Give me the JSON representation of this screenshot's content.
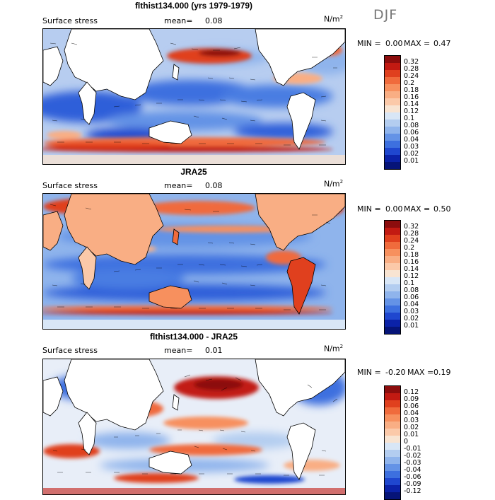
{
  "season": "DJF",
  "unit": "N/m",
  "unit_exp": "2",
  "panels": [
    {
      "title": "flthist134.000 (yrs 1979-1979)",
      "field_label": "Surface stress",
      "mean_label": "mean=",
      "mean_value": "0.08",
      "min_label": "MIN =",
      "min_value": "0.00",
      "max_label": "MAX =",
      "max_value": "0.47",
      "colorbar": {
        "labels": [
          "0.32",
          "0.28",
          "0.24",
          "0.2",
          "0.18",
          "0.16",
          "0.14",
          "0.12",
          "0.1",
          "0.08",
          "0.06",
          "0.04",
          "0.03",
          "0.02",
          "0.01"
        ],
        "colors": [
          "#8c0d0d",
          "#c21a12",
          "#e0401e",
          "#f06b3c",
          "#f7905e",
          "#f9ae84",
          "#fbc9a9",
          "#f8e4d2",
          "#d8e6f6",
          "#b3cdf0",
          "#8fb4ec",
          "#6493e6",
          "#3d70df",
          "#1f47cf",
          "#0b22a8",
          "#061478"
        ]
      }
    },
    {
      "title": "JRA25",
      "field_label": "Surface stress",
      "mean_label": "mean=",
      "mean_value": "0.08",
      "min_label": "MIN =",
      "min_value": "0.00",
      "max_label": "MAX =",
      "max_value": "0.50",
      "colorbar": {
        "labels": [
          "0.32",
          "0.28",
          "0.24",
          "0.2",
          "0.18",
          "0.16",
          "0.14",
          "0.12",
          "0.1",
          "0.08",
          "0.06",
          "0.04",
          "0.03",
          "0.02",
          "0.01"
        ],
        "colors": [
          "#8c0d0d",
          "#c21a12",
          "#e0401e",
          "#f06b3c",
          "#f7905e",
          "#f9ae84",
          "#fbc9a9",
          "#f8e4d2",
          "#d8e6f6",
          "#b3cdf0",
          "#8fb4ec",
          "#6493e6",
          "#3d70df",
          "#1f47cf",
          "#0b22a8",
          "#061478"
        ]
      }
    },
    {
      "title": "flthist134.000 - JRA25",
      "field_label": "Surface stress",
      "mean_label": "mean=",
      "mean_value": "0.01",
      "min_label": "MIN =",
      "min_value": "-0.20",
      "max_label": "MAX =",
      "max_value": "0.19",
      "colorbar": {
        "labels": [
          "0.12",
          "0.09",
          "0.06",
          "0.04",
          "0.03",
          "0.02",
          "0.01",
          "0",
          "-0.01",
          "-0.02",
          "-0.03",
          "-0.04",
          "-0.06",
          "-0.09",
          "-0.12"
        ],
        "colors": [
          "#8c0d0d",
          "#c21a12",
          "#e0401e",
          "#f06b3c",
          "#f7905e",
          "#f9ae84",
          "#fbc9a9",
          "#f8e4d2",
          "#d8e6f6",
          "#b3cdf0",
          "#8fb4ec",
          "#6493e6",
          "#3d70df",
          "#1f47cf",
          "#0b22a8",
          "#061478"
        ]
      }
    }
  ]
}
